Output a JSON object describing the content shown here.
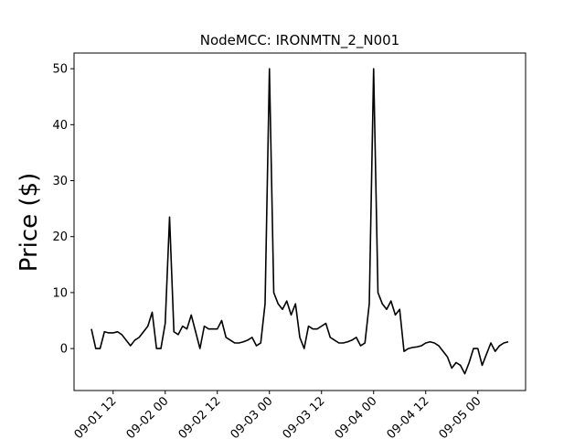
{
  "chart_data": {
    "type": "line",
    "title": "NodeMCC: IRONMTN_2_N001",
    "y_label": "Price ($)",
    "x": [
      "09-01 07",
      "09-01 08",
      "09-01 09",
      "09-01 10",
      "09-01 11",
      "09-01 12",
      "09-01 13",
      "09-01 14",
      "09-01 15",
      "09-01 16",
      "09-01 17",
      "09-01 18",
      "09-01 19",
      "09-01 20",
      "09-01 21",
      "09-01 22",
      "09-01 23",
      "09-02 00",
      "09-02 01",
      "09-02 02",
      "09-02 03",
      "09-02 04",
      "09-02 05",
      "09-02 06",
      "09-02 07",
      "09-02 08",
      "09-02 09",
      "09-02 10",
      "09-02 11",
      "09-02 12",
      "09-02 13",
      "09-02 14",
      "09-02 15",
      "09-02 16",
      "09-02 17",
      "09-02 18",
      "09-02 19",
      "09-02 20",
      "09-02 21",
      "09-02 22",
      "09-02 23",
      "09-03 00",
      "09-03 01",
      "09-03 02",
      "09-03 03",
      "09-03 04",
      "09-03 05",
      "09-03 06",
      "09-03 07",
      "09-03 08",
      "09-03 09",
      "09-03 10",
      "09-03 11",
      "09-03 12",
      "09-03 13",
      "09-03 14",
      "09-03 15",
      "09-03 16",
      "09-03 17",
      "09-03 18",
      "09-03 19",
      "09-03 20",
      "09-03 21",
      "09-03 22",
      "09-03 23",
      "09-04 00",
      "09-04 01",
      "09-04 02",
      "09-04 03",
      "09-04 04",
      "09-04 05",
      "09-04 06",
      "09-04 07",
      "09-04 08",
      "09-04 09",
      "09-04 10",
      "09-04 11",
      "09-04 12",
      "09-04 13",
      "09-04 14",
      "09-04 15",
      "09-04 16",
      "09-04 17",
      "09-04 18",
      "09-04 19",
      "09-04 20",
      "09-04 21",
      "09-04 22",
      "09-04 23",
      "09-05 00",
      "09-05 01",
      "09-05 02",
      "09-05 03",
      "09-05 04",
      "09-05 05",
      "09-05 06",
      "09-05 07"
    ],
    "series": [
      {
        "name": "IRONMTN_2_N001",
        "color": "#000000",
        "values": [
          3.5,
          0,
          0,
          3,
          2.8,
          2.8,
          3,
          2.5,
          1.5,
          0.5,
          1.5,
          2,
          3,
          4,
          6.5,
          0,
          0,
          4.5,
          23.5,
          3,
          2.5,
          4,
          3.5,
          6,
          3,
          0,
          4,
          3.5,
          3.5,
          3.5,
          5,
          2,
          1.5,
          1,
          1,
          1.2,
          1.5,
          2,
          0.5,
          1,
          8,
          50,
          10,
          8,
          7,
          8.5,
          6,
          8,
          2,
          0,
          4,
          3.5,
          3.5,
          4,
          4.5,
          2,
          1.5,
          1,
          1,
          1.2,
          1.5,
          2,
          0.5,
          1,
          8,
          50,
          10,
          8,
          7,
          8.5,
          6,
          7,
          -0.5,
          0,
          0.2,
          0.3,
          0.5,
          1,
          1.2,
          1,
          0.5,
          -0.5,
          -1.5,
          -3.5,
          -2.5,
          -3,
          -4.5,
          -2.5,
          0,
          0,
          -3,
          -1,
          1,
          -0.5,
          0.5,
          1,
          1.2
        ]
      }
    ],
    "xlim": [
      "09-01 03",
      "09-05 11"
    ],
    "xticks": [
      "09-01 12",
      "09-02 00",
      "09-02 12",
      "09-03 00",
      "09-03 12",
      "09-04 00",
      "09-04 12",
      "09-05 00"
    ],
    "ylim": [
      -7.5,
      52.8
    ],
    "yticks": [
      0,
      10,
      20,
      30,
      40,
      50
    ]
  }
}
